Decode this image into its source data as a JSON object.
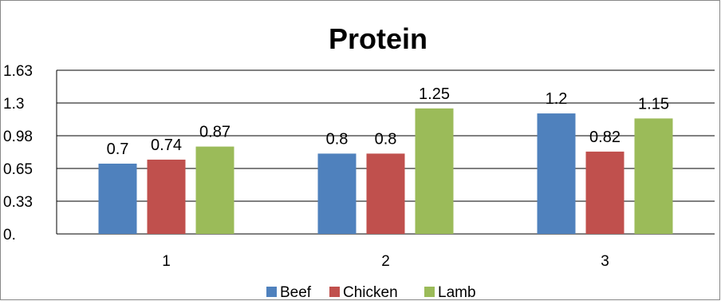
{
  "chart_data": {
    "type": "bar",
    "title": "Protein",
    "xlabel": "",
    "ylabel": "",
    "categories": [
      "1",
      "2",
      "3"
    ],
    "y_ticks": [
      "0.",
      "0.33",
      "0.65",
      "0.98",
      "1.3",
      "1.63"
    ],
    "ylim": [
      0,
      1.63
    ],
    "grid": true,
    "legend_position": "bottom",
    "series": [
      {
        "name": "Beef",
        "color": "#4F81BD",
        "values": [
          0.7,
          0.8,
          1.2
        ],
        "labels": [
          "0.7",
          "0.8",
          "1.2"
        ]
      },
      {
        "name": "Chicken",
        "color": "#C0504D",
        "values": [
          0.74,
          0.8,
          0.82
        ],
        "labels": [
          "0.74",
          "0.8",
          "0.82"
        ]
      },
      {
        "name": "Lamb",
        "color": "#9BBB59",
        "values": [
          0.87,
          1.25,
          1.15
        ],
        "labels": [
          "0.87",
          "1.25",
          "1.15"
        ]
      }
    ]
  }
}
